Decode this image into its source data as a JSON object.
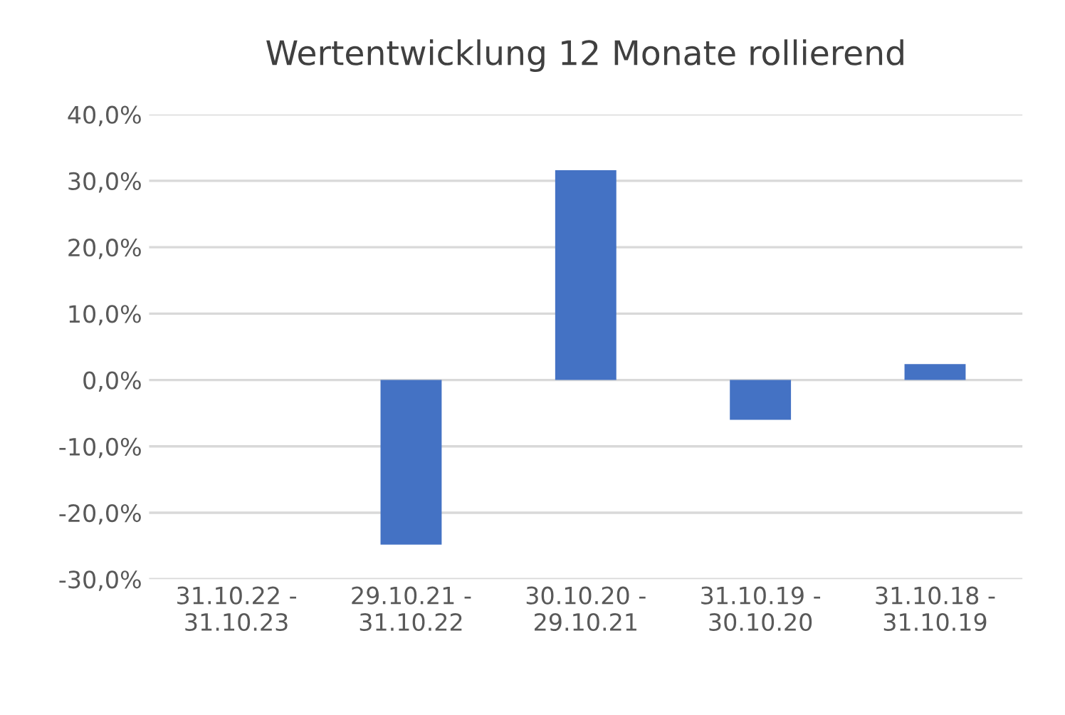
{
  "chart_data": {
    "type": "bar",
    "title": "Wertentwicklung 12 Monate rollierend",
    "categories": [
      "31.10.22 -\n31.10.23",
      "29.10.21 -\n31.10.22",
      "30.10.20 -\n29.10.21",
      "31.10.19 -\n30.10.20",
      "31.10.18 -\n31.10.19"
    ],
    "values": [
      null,
      -24.8,
      31.6,
      -6.0,
      2.4
    ],
    "color": "#4472c4",
    "ylim": [
      -30,
      40
    ],
    "yticks": [
      {
        "value": -30,
        "label": "-30,0%"
      },
      {
        "value": -20,
        "label": "-20,0%"
      },
      {
        "value": -10,
        "label": "-10,0%"
      },
      {
        "value": 0,
        "label": "0,0%"
      },
      {
        "value": 10,
        "label": "10,0%"
      },
      {
        "value": 20,
        "label": "20,0%"
      },
      {
        "value": 30,
        "label": "30,0%"
      },
      {
        "value": 40,
        "label": "40,0%"
      }
    ],
    "grid": "y",
    "legend": false
  }
}
